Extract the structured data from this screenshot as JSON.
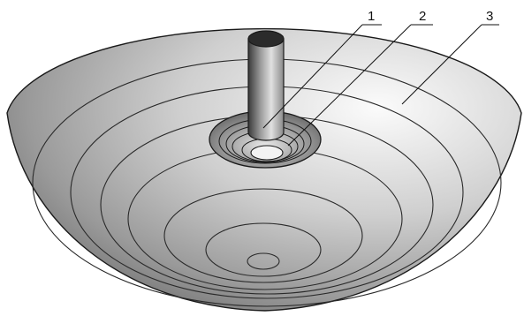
{
  "callouts": [
    {
      "id": "1",
      "label": "1"
    },
    {
      "id": "2",
      "label": "2"
    },
    {
      "id": "3",
      "label": "3"
    }
  ],
  "colors": {
    "outline": "#1a1a1a",
    "ring_line": "#2a2a2a",
    "surface_light": "#f2f2f2",
    "surface_dark": "#6f6f6f",
    "tube_light": "#d8d8d8",
    "tube_dark": "#3a3a3a"
  }
}
